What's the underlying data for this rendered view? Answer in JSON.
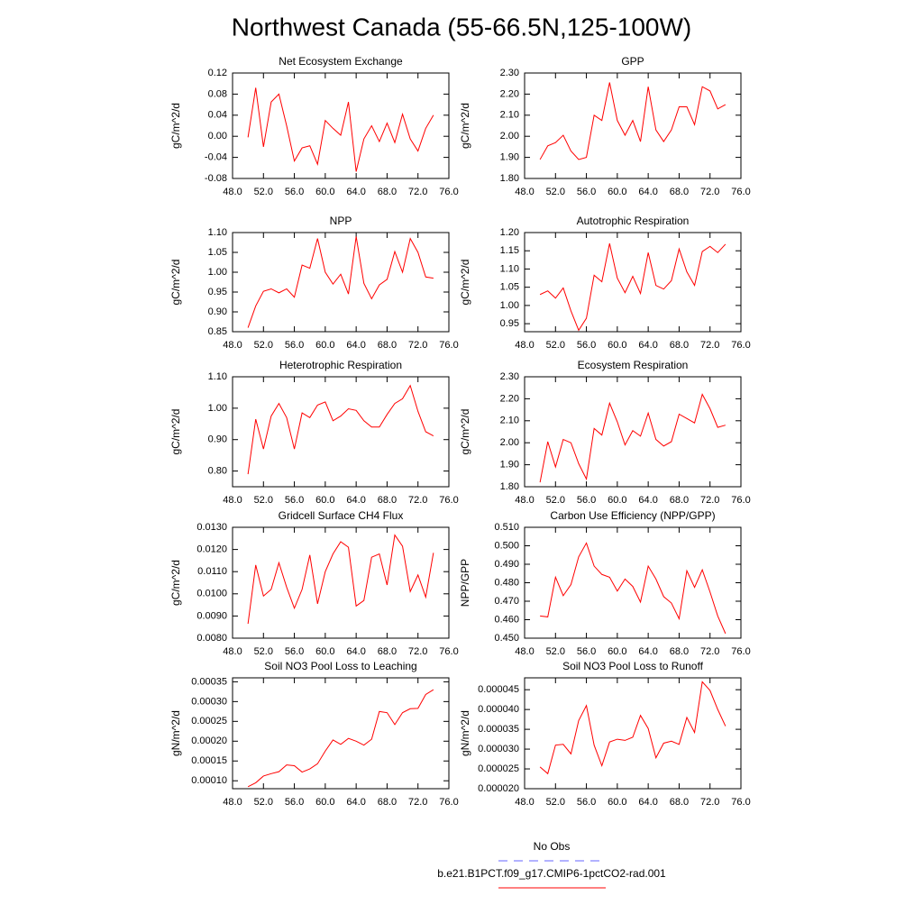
{
  "title": "Northwest Canada (55-66.5N,125-100W)",
  "legend": [
    {
      "name": "No Obs",
      "color": "#6666ff",
      "dash": true
    },
    {
      "name": "b.e21.B1PCT.f09_g17.CMIP6-1pctCO2-rad.001",
      "color": "#ff0000",
      "dash": false
    }
  ],
  "chart_data": [
    {
      "type": "line",
      "title": "Net Ecosystem Exchange",
      "ylabel": "gC/m^2/d",
      "color": "#ff0000",
      "x": [
        50,
        51,
        52,
        53,
        54,
        55,
        56,
        57,
        58,
        59,
        60,
        61,
        62,
        63,
        64,
        65,
        66,
        67,
        68,
        69,
        70,
        71,
        72,
        73,
        74
      ],
      "values": [
        -0.002,
        0.092,
        -0.02,
        0.065,
        0.08,
        0.02,
        -0.047,
        -0.022,
        -0.018,
        -0.053,
        0.03,
        0.015,
        0.002,
        0.065,
        -0.067,
        -0.005,
        0.02,
        -0.01,
        0.025,
        -0.012,
        0.042,
        -0.005,
        -0.028,
        0.015,
        0.04
      ],
      "xlim": [
        48,
        76
      ],
      "xticks": [
        {
          "value": 48,
          "label": "48.0"
        },
        {
          "value": 52,
          "label": "52.0"
        },
        {
          "value": 56,
          "label": "56.0"
        },
        {
          "value": 60,
          "label": "60.0"
        },
        {
          "value": 64,
          "label": "64.0"
        },
        {
          "value": 68,
          "label": "68.0"
        },
        {
          "value": 72,
          "label": "72.0"
        },
        {
          "value": 76,
          "label": "76.0"
        }
      ],
      "ylim": [
        -0.08,
        0.12
      ],
      "yticks": [
        -0.08,
        -0.04,
        {
          "value": 0,
          "label": "0.00"
        },
        0.04,
        0.08,
        0.12
      ]
    },
    {
      "type": "line",
      "title": "GPP",
      "ylabel": "gC/m^2/d",
      "color": "#ff0000",
      "x": [
        50,
        51,
        52,
        53,
        54,
        55,
        56,
        57,
        58,
        59,
        60,
        61,
        62,
        63,
        64,
        65,
        66,
        67,
        68,
        69,
        70,
        71,
        72,
        73,
        74
      ],
      "values": [
        1.89,
        1.955,
        1.97,
        2.005,
        1.93,
        1.89,
        1.9,
        2.1,
        2.075,
        2.255,
        2.075,
        2.005,
        2.075,
        1.975,
        2.235,
        2.03,
        1.975,
        2.03,
        2.14,
        2.14,
        2.055,
        2.235,
        2.215,
        2.13,
        2.15
      ],
      "xlim": [
        48,
        76
      ],
      "xticks": [
        {
          "value": 48,
          "label": "48.0"
        },
        {
          "value": 52,
          "label": "52.0"
        },
        {
          "value": 56,
          "label": "56.0"
        },
        {
          "value": 60,
          "label": "60.0"
        },
        {
          "value": 64,
          "label": "64.0"
        },
        {
          "value": 68,
          "label": "68.0"
        },
        {
          "value": 72,
          "label": "72.0"
        },
        {
          "value": 76,
          "label": "76.0"
        }
      ],
      "ylim": [
        1.8,
        2.3
      ],
      "yticks": [
        {
          "value": 1.8,
          "label": "1.80"
        },
        {
          "value": 1.9,
          "label": "1.90"
        },
        {
          "value": 2.0,
          "label": "2.00"
        },
        {
          "value": 2.1,
          "label": "2.10"
        },
        {
          "value": 2.2,
          "label": "2.20"
        },
        {
          "value": 2.3,
          "label": "2.30"
        }
      ]
    },
    {
      "type": "line",
      "title": "NPP",
      "ylabel": "gC/m^2/d",
      "color": "#ff0000",
      "x": [
        50,
        51,
        52,
        53,
        54,
        55,
        56,
        57,
        58,
        59,
        60,
        61,
        62,
        63,
        64,
        65,
        66,
        67,
        68,
        69,
        70,
        71,
        72,
        73,
        74
      ],
      "values": [
        0.86,
        0.915,
        0.952,
        0.958,
        0.948,
        0.958,
        0.937,
        1.018,
        1.01,
        1.085,
        1.0,
        0.97,
        0.995,
        0.945,
        1.09,
        0.972,
        0.933,
        0.968,
        0.982,
        1.052,
        1.0,
        1.085,
        1.05,
        0.988,
        0.985
      ],
      "xlim": [
        48,
        76
      ],
      "xticks": [
        {
          "value": 48,
          "label": "48.0"
        },
        {
          "value": 52,
          "label": "52.0"
        },
        {
          "value": 56,
          "label": "56.0"
        },
        {
          "value": 60,
          "label": "60.0"
        },
        {
          "value": 64,
          "label": "64.0"
        },
        {
          "value": 68,
          "label": "68.0"
        },
        {
          "value": 72,
          "label": "72.0"
        },
        {
          "value": 76,
          "label": "76.0"
        }
      ],
      "ylim": [
        0.85,
        1.1
      ],
      "yticks": [
        0.85,
        {
          "value": 0.9,
          "label": "0.90"
        },
        0.95,
        {
          "value": 1.0,
          "label": "1.00"
        },
        1.05,
        {
          "value": 1.1,
          "label": "1.10"
        }
      ]
    },
    {
      "type": "line",
      "title": "Autotrophic Respiration",
      "ylabel": "gC/m^2/d",
      "color": "#ff0000",
      "x": [
        50,
        51,
        52,
        53,
        54,
        55,
        56,
        57,
        58,
        59,
        60,
        61,
        62,
        63,
        64,
        65,
        66,
        67,
        68,
        69,
        70,
        71,
        72,
        73,
        74
      ],
      "values": [
        1.03,
        1.04,
        1.02,
        1.048,
        0.985,
        0.932,
        0.965,
        1.083,
        1.065,
        1.17,
        1.075,
        1.035,
        1.08,
        1.033,
        1.145,
        1.055,
        1.045,
        1.068,
        1.155,
        1.092,
        1.055,
        1.148,
        1.162,
        1.145,
        1.168
      ],
      "xlim": [
        48,
        76
      ],
      "xticks": [
        {
          "value": 48,
          "label": "48.0"
        },
        {
          "value": 52,
          "label": "52.0"
        },
        {
          "value": 56,
          "label": "56.0"
        },
        {
          "value": 60,
          "label": "60.0"
        },
        {
          "value": 64,
          "label": "64.0"
        },
        {
          "value": 68,
          "label": "68.0"
        },
        {
          "value": 72,
          "label": "72.0"
        },
        {
          "value": 76,
          "label": "76.0"
        }
      ],
      "ylim": [
        0.928,
        1.2
      ],
      "yticks": [
        0.95,
        {
          "value": 1.0,
          "label": "1.00"
        },
        1.05,
        {
          "value": 1.1,
          "label": "1.10"
        },
        1.15,
        {
          "value": 1.2,
          "label": "1.20"
        }
      ]
    },
    {
      "type": "line",
      "title": "Heterotrophic Respiration",
      "ylabel": "gC/m^2/d",
      "color": "#ff0000",
      "x": [
        50,
        51,
        52,
        53,
        54,
        55,
        56,
        57,
        58,
        59,
        60,
        61,
        62,
        63,
        64,
        65,
        66,
        67,
        68,
        69,
        70,
        71,
        72,
        73,
        74
      ],
      "values": [
        0.79,
        0.965,
        0.87,
        0.975,
        1.015,
        0.97,
        0.87,
        0.985,
        0.97,
        1.01,
        1.02,
        0.96,
        0.975,
        0.998,
        0.993,
        0.96,
        0.94,
        0.94,
        0.98,
        1.015,
        1.03,
        1.072,
        0.99,
        0.925,
        0.912
      ],
      "xlim": [
        48,
        76
      ],
      "xticks": [
        {
          "value": 48,
          "label": "48.0"
        },
        {
          "value": 52,
          "label": "52.0"
        },
        {
          "value": 56,
          "label": "56.0"
        },
        {
          "value": 60,
          "label": "60.0"
        },
        {
          "value": 64,
          "label": "64.0"
        },
        {
          "value": 68,
          "label": "68.0"
        },
        {
          "value": 72,
          "label": "72.0"
        },
        {
          "value": 76,
          "label": "76.0"
        }
      ],
      "ylim": [
        0.75,
        1.1
      ],
      "yticks": [
        {
          "value": 0.8,
          "label": "0.80"
        },
        {
          "value": 0.9,
          "label": "0.90"
        },
        {
          "value": 1.0,
          "label": "1.00"
        },
        {
          "value": 1.1,
          "label": "1.10"
        }
      ]
    },
    {
      "type": "line",
      "title": "Ecosystem Respiration",
      "ylabel": "gC/m^2/d",
      "color": "#ff0000",
      "x": [
        50,
        51,
        52,
        53,
        54,
        55,
        56,
        57,
        58,
        59,
        60,
        61,
        62,
        63,
        64,
        65,
        66,
        67,
        68,
        69,
        70,
        71,
        72,
        73,
        74
      ],
      "values": [
        1.82,
        2.005,
        1.89,
        2.015,
        2.0,
        1.905,
        1.835,
        2.065,
        2.035,
        2.18,
        2.095,
        1.99,
        2.055,
        2.03,
        2.135,
        2.015,
        1.985,
        2.005,
        2.13,
        2.11,
        2.09,
        2.22,
        2.155,
        2.07,
        2.08
      ],
      "xlim": [
        48,
        76
      ],
      "xticks": [
        {
          "value": 48,
          "label": "48.0"
        },
        {
          "value": 52,
          "label": "52.0"
        },
        {
          "value": 56,
          "label": "56.0"
        },
        {
          "value": 60,
          "label": "60.0"
        },
        {
          "value": 64,
          "label": "64.0"
        },
        {
          "value": 68,
          "label": "68.0"
        },
        {
          "value": 72,
          "label": "72.0"
        },
        {
          "value": 76,
          "label": "76.0"
        }
      ],
      "ylim": [
        1.8,
        2.3
      ],
      "yticks": [
        {
          "value": 1.8,
          "label": "1.80"
        },
        {
          "value": 1.9,
          "label": "1.90"
        },
        {
          "value": 2.0,
          "label": "2.00"
        },
        {
          "value": 2.1,
          "label": "2.10"
        },
        {
          "value": 2.2,
          "label": "2.20"
        },
        {
          "value": 2.3,
          "label": "2.30"
        }
      ]
    },
    {
      "type": "line",
      "title": "Gridcell Surface CH4 Flux",
      "ylabel": "gC/m^2/d",
      "color": "#ff0000",
      "x": [
        50,
        51,
        52,
        53,
        54,
        55,
        56,
        57,
        58,
        59,
        60,
        61,
        62,
        63,
        64,
        65,
        66,
        67,
        68,
        69,
        70,
        71,
        72,
        73,
        74
      ],
      "values": [
        0.00865,
        0.0113,
        0.0099,
        0.0102,
        0.0114,
        0.0103,
        0.00935,
        0.0102,
        0.01175,
        0.00955,
        0.011,
        0.0118,
        0.01235,
        0.0121,
        0.00945,
        0.0097,
        0.01165,
        0.0118,
        0.0104,
        0.01265,
        0.01215,
        0.0101,
        0.01085,
        0.00985,
        0.01185
      ],
      "xlim": [
        48,
        76
      ],
      "xticks": [
        {
          "value": 48,
          "label": "48.0"
        },
        {
          "value": 52,
          "label": "52.0"
        },
        {
          "value": 56,
          "label": "56.0"
        },
        {
          "value": 60,
          "label": "60.0"
        },
        {
          "value": 64,
          "label": "64.0"
        },
        {
          "value": 68,
          "label": "68.0"
        },
        {
          "value": 72,
          "label": "72.0"
        },
        {
          "value": 76,
          "label": "76.0"
        }
      ],
      "ylim": [
        0.008,
        0.013
      ],
      "yticks": [
        {
          "value": 0.008,
          "label": "0.0080"
        },
        {
          "value": 0.009,
          "label": "0.0090"
        },
        {
          "value": 0.01,
          "label": "0.0100"
        },
        {
          "value": 0.011,
          "label": "0.0110"
        },
        {
          "value": 0.012,
          "label": "0.0120"
        },
        {
          "value": 0.013,
          "label": "0.0130"
        }
      ]
    },
    {
      "type": "line",
      "title": "Carbon Use Efficiency (NPP/GPP)",
      "ylabel": "NPP/GPP",
      "color": "#ff0000",
      "x": [
        50,
        51,
        52,
        53,
        54,
        55,
        56,
        57,
        58,
        59,
        60,
        61,
        62,
        63,
        64,
        65,
        66,
        67,
        68,
        69,
        70,
        71,
        72,
        73,
        74
      ],
      "values": [
        0.462,
        0.4615,
        0.483,
        0.473,
        0.479,
        0.494,
        0.5015,
        0.489,
        0.4845,
        0.483,
        0.4755,
        0.482,
        0.478,
        0.4695,
        0.489,
        0.482,
        0.4725,
        0.469,
        0.4605,
        0.4865,
        0.4775,
        0.487,
        0.475,
        0.462,
        0.4525
      ],
      "xlim": [
        48,
        76
      ],
      "xticks": [
        {
          "value": 48,
          "label": "48.0"
        },
        {
          "value": 52,
          "label": "52.0"
        },
        {
          "value": 56,
          "label": "56.0"
        },
        {
          "value": 60,
          "label": "60.0"
        },
        {
          "value": 64,
          "label": "64.0"
        },
        {
          "value": 68,
          "label": "68.0"
        },
        {
          "value": 72,
          "label": "72.0"
        },
        {
          "value": 76,
          "label": "76.0"
        }
      ],
      "ylim": [
        0.45,
        0.51
      ],
      "yticks": [
        {
          "value": 0.45,
          "label": "0.450"
        },
        {
          "value": 0.46,
          "label": "0.460"
        },
        {
          "value": 0.47,
          "label": "0.470"
        },
        {
          "value": 0.48,
          "label": "0.480"
        },
        {
          "value": 0.49,
          "label": "0.490"
        },
        {
          "value": 0.5,
          "label": "0.500"
        },
        {
          "value": 0.51,
          "label": "0.510"
        }
      ]
    },
    {
      "type": "line",
      "title": "Soil NO3 Pool Loss to Leaching",
      "ylabel": "gN/m^2/d",
      "color": "#ff0000",
      "x": [
        50,
        51,
        52,
        53,
        54,
        55,
        56,
        57,
        58,
        59,
        60,
        61,
        62,
        63,
        64,
        65,
        66,
        67,
        68,
        69,
        70,
        71,
        72,
        73,
        74
      ],
      "values": [
        8.5e-05,
        9.5e-05,
        0.000112,
        0.000118,
        0.000123,
        0.00014,
        0.000138,
        0.000122,
        0.00013,
        0.000143,
        0.000175,
        0.000203,
        0.000192,
        0.000207,
        0.0002,
        0.00019,
        0.000205,
        0.000275,
        0.000272,
        0.000242,
        0.000272,
        0.000282,
        0.000283,
        0.000318,
        0.00033
      ],
      "xlim": [
        48,
        76
      ],
      "xticks": [
        {
          "value": 48,
          "label": "48.0"
        },
        {
          "value": 52,
          "label": "52.0"
        },
        {
          "value": 56,
          "label": "56.0"
        },
        {
          "value": 60,
          "label": "60.0"
        },
        {
          "value": 64,
          "label": "64.0"
        },
        {
          "value": 68,
          "label": "68.0"
        },
        {
          "value": 72,
          "label": "72.0"
        },
        {
          "value": 76,
          "label": "76.0"
        }
      ],
      "ylim": [
        8e-05,
        0.00036
      ],
      "yticks": [
        {
          "value": 0.0001,
          "label": "0.00010"
        },
        0.00015,
        {
          "value": 0.0002,
          "label": "0.00020"
        },
        0.00025,
        {
          "value": 0.0003,
          "label": "0.00030"
        },
        0.00035
      ]
    },
    {
      "type": "line",
      "title": "Soil NO3 Pool Loss to Runoff",
      "ylabel": "gN/m^2/d",
      "color": "#ff0000",
      "x": [
        50,
        51,
        52,
        53,
        54,
        55,
        56,
        57,
        58,
        59,
        60,
        61,
        62,
        63,
        64,
        65,
        66,
        67,
        68,
        69,
        70,
        71,
        72,
        73,
        74
      ],
      "values": [
        2.55e-05,
        2.38e-05,
        3.1e-05,
        3.12e-05,
        2.88e-05,
        3.72e-05,
        4.1e-05,
        3.1e-05,
        2.58e-05,
        3.18e-05,
        3.25e-05,
        3.22e-05,
        3.3e-05,
        3.85e-05,
        3.52e-05,
        2.78e-05,
        3.15e-05,
        3.2e-05,
        3.12e-05,
        3.8e-05,
        3.42e-05,
        4.7e-05,
        4.48e-05,
        4e-05,
        3.58e-05
      ],
      "xlim": [
        48,
        76
      ],
      "xticks": [
        {
          "value": 48,
          "label": "48.0"
        },
        {
          "value": 52,
          "label": "52.0"
        },
        {
          "value": 56,
          "label": "56.0"
        },
        {
          "value": 60,
          "label": "60.0"
        },
        {
          "value": 64,
          "label": "64.0"
        },
        {
          "value": 68,
          "label": "68.0"
        },
        {
          "value": 72,
          "label": "72.0"
        },
        {
          "value": 76,
          "label": "76.0"
        }
      ],
      "ylim": [
        2e-05,
        4.8e-05
      ],
      "yticks": [
        {
          "value": 2e-05,
          "label": "0.000020"
        },
        2.5e-05,
        {
          "value": 3e-05,
          "label": "0.000030"
        },
        3.5e-05,
        {
          "value": 4e-05,
          "label": "0.000040"
        },
        4.5e-05
      ]
    }
  ]
}
